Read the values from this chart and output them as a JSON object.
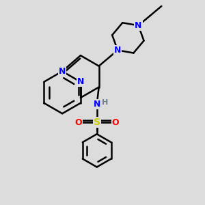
{
  "background_color": "#dcdcdc",
  "atom_colors": {
    "N": "#0000FF",
    "S": "#cccc00",
    "O": "#FF0000",
    "H": "#708090",
    "C": "#000000"
  },
  "bond_color": "#000000",
  "bond_width": 1.8,
  "fig_width": 3.0,
  "fig_height": 3.0,
  "dpi": 100
}
